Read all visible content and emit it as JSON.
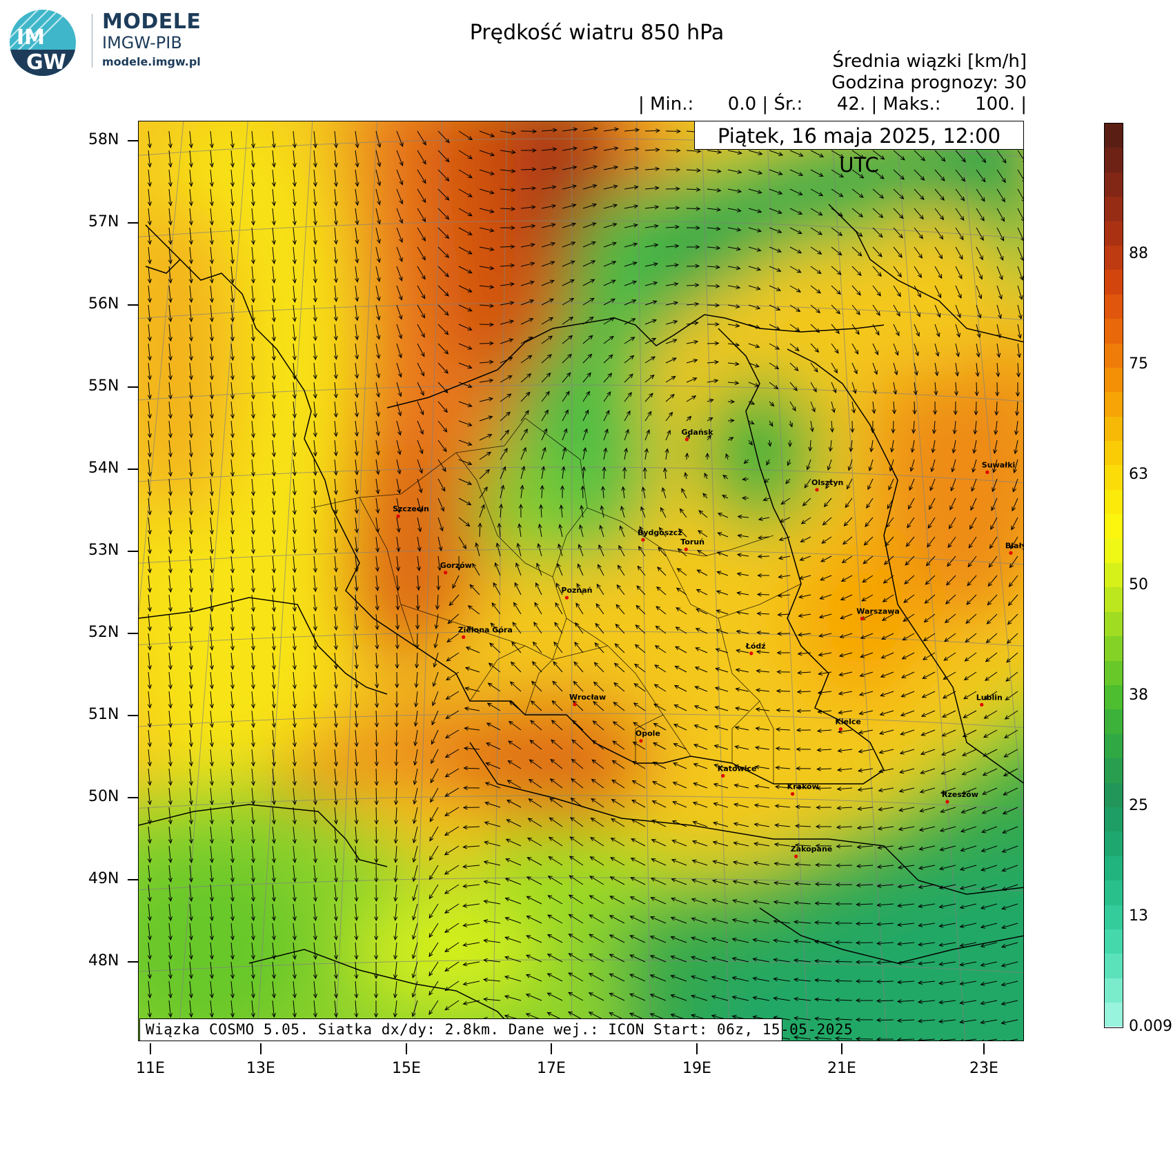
{
  "brand": {
    "logo_text_top": "IM",
    "logo_text_bottom": "GW",
    "name": "MODELE",
    "org": "IMGW-PIB",
    "url": "modele.imgw.pl"
  },
  "header": {
    "title": "Prędkość wiatru 850 hPa",
    "units": "Średnia wiązki [km/h]",
    "forecast_hour": "Godzina prognozy: 30",
    "stats": "| Min.:      0.0 | Śr.:      42. | Maks.:      100. |",
    "valid_time": "Piątek, 16 maja 2025, 12:00 UTC"
  },
  "footer": {
    "model_info": "Wiązka COSMO 5.05. Siatka dx/dy: 2.8km. Dane wej.: ICON Start: 06z, 15-05-2025"
  },
  "axes": {
    "lat_labels": [
      "58N",
      "57N",
      "56N",
      "55N",
      "54N",
      "53N",
      "52N",
      "51N",
      "50N",
      "49N",
      "48N"
    ],
    "lon_labels": [
      "11E",
      "13E",
      "15E",
      "17E",
      "19E",
      "21E",
      "23E"
    ]
  },
  "colorbar": {
    "labels": [
      "88",
      "75",
      "63",
      "50",
      "38",
      "25",
      "13",
      "0.0092"
    ],
    "colors": [
      "#5a1e14",
      "#6e2216",
      "#822615",
      "#962c14",
      "#aa3212",
      "#be3a10",
      "#d2460e",
      "#e0560c",
      "#e8680a",
      "#ef7c08",
      "#f39006",
      "#f6a406",
      "#f8b806",
      "#facc06",
      "#fbdc08",
      "#fcea0a",
      "#fcf60e",
      "#eef814",
      "#d6f01a",
      "#bce61e",
      "#a0dc22",
      "#84d226",
      "#68c82a",
      "#4cbe30",
      "#3cb23a",
      "#30a844",
      "#289e4e",
      "#229658",
      "#1e9e64",
      "#1ea870",
      "#22b47e",
      "#2ac08c",
      "#34cc9a",
      "#44d8aa",
      "#5ce2ba",
      "#7aeccc",
      "#98f4dc"
    ]
  },
  "map_data": {
    "type": "wind_speed_map",
    "variable": "Prędkość wiatru 850 hPa",
    "units": "km/h",
    "min": 0.0,
    "mean": 42,
    "max": 100,
    "cities": [
      {
        "name": "Gdańsk",
        "lon": 18.65,
        "lat": 54.35
      },
      {
        "name": "Olsztyn",
        "lon": 20.48,
        "lat": 53.78
      },
      {
        "name": "Suwałki",
        "lon": 22.93,
        "lat": 54.1
      },
      {
        "name": "Białystok",
        "lon": 23.16,
        "lat": 53.13
      },
      {
        "name": "Szczecin",
        "lon": 14.55,
        "lat": 53.43
      },
      {
        "name": "Bydgoszcz",
        "lon": 18.0,
        "lat": 53.12
      },
      {
        "name": "Toruń",
        "lon": 18.6,
        "lat": 53.01
      },
      {
        "name": "Gorzów",
        "lon": 15.24,
        "lat": 52.73
      },
      {
        "name": "Poznań",
        "lon": 16.93,
        "lat": 52.41
      },
      {
        "name": "Warszawa",
        "lon": 21.01,
        "lat": 52.23
      },
      {
        "name": "Zielona Góra",
        "lon": 15.51,
        "lat": 51.94
      },
      {
        "name": "Łódź",
        "lon": 19.46,
        "lat": 51.76
      },
      {
        "name": "Lublin",
        "lon": 22.57,
        "lat": 51.25
      },
      {
        "name": "Wrocław",
        "lon": 17.04,
        "lat": 51.11
      },
      {
        "name": "Kielce",
        "lon": 20.63,
        "lat": 50.87
      },
      {
        "name": "Opole",
        "lon": 17.93,
        "lat": 50.67
      },
      {
        "name": "Rzeszów",
        "lon": 22.0,
        "lat": 50.04
      },
      {
        "name": "Katowice",
        "lon": 19.02,
        "lat": 50.26
      },
      {
        "name": "Kraków",
        "lon": 19.94,
        "lat": 50.06
      },
      {
        "name": "Zakopane",
        "lon": 19.95,
        "lat": 49.3
      }
    ]
  }
}
